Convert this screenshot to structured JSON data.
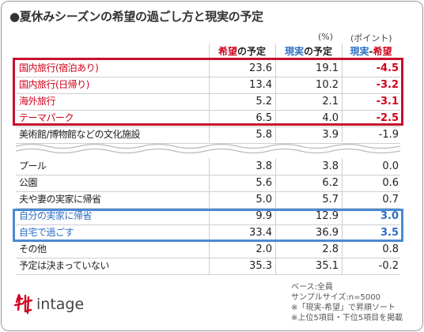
{
  "title": "●夏休みシーズンの希望の過ごし方と現実の予定",
  "units": {
    "percent": "(%)",
    "point": "(ポイント)"
  },
  "headers": {
    "hope_part1": "希望",
    "hope_part2": "の予定",
    "real_part1": "現実",
    "real_part2": "の予定",
    "diff_part1": "現実",
    "diff_part2": "-",
    "diff_part3": "希望"
  },
  "chart_data": {
    "type": "table",
    "columns": [
      "希望の予定",
      "現実の予定",
      "現実-希望"
    ],
    "top_rows": [
      {
        "label": "国内旅行(宿泊あり)",
        "hope": "23.6",
        "real": "19.1",
        "diff": "-4.5"
      },
      {
        "label": "国内旅行(日帰り)",
        "hope": "13.4",
        "real": "10.2",
        "diff": "-3.2"
      },
      {
        "label": "海外旅行",
        "hope": "5.2",
        "real": "2.1",
        "diff": "-3.1"
      },
      {
        "label": "テーマパーク",
        "hope": "6.5",
        "real": "4.0",
        "diff": "-2.5"
      },
      {
        "label": "美術館/博物館などの文化施設",
        "hope": "5.8",
        "real": "3.9",
        "diff": "-1.9"
      }
    ],
    "bottom_rows": [
      {
        "label": "プール",
        "hope": "3.8",
        "real": "3.8",
        "diff": "0.0"
      },
      {
        "label": "公園",
        "hope": "5.6",
        "real": "6.2",
        "diff": "0.6"
      },
      {
        "label": "夫や妻の実家に帰省",
        "hope": "5.0",
        "real": "5.7",
        "diff": "0.7"
      },
      {
        "label": "自分の実家に帰省",
        "hope": "9.9",
        "real": "12.9",
        "diff": "3.0"
      },
      {
        "label": "自宅で過ごす",
        "hope": "33.4",
        "real": "36.9",
        "diff": "3.5"
      },
      {
        "label": "その他",
        "hope": "2.0",
        "real": "2.8",
        "diff": "0.8"
      },
      {
        "label": "予定は決まっていない",
        "hope": "35.3",
        "real": "35.1",
        "diff": "-0.2"
      }
    ],
    "highlight_red": [
      "国内旅行(宿泊あり)",
      "国内旅行(日帰り)",
      "海外旅行",
      "テーマパーク"
    ],
    "highlight_blue": [
      "自分の実家に帰省",
      "自宅で過ごす"
    ]
  },
  "notes": [
    "ベース:全員",
    "サンプルサイズ:n=5000",
    "※「現実-希望」で昇順ソート",
    "※上位5項目・下位5項目を掲載"
  ],
  "logo": {
    "text": "intage"
  },
  "colors": {
    "red": "#d0021b",
    "blue": "#2e6fc4",
    "box_red": "#c8102e",
    "box_blue": "#4a8ad4"
  }
}
